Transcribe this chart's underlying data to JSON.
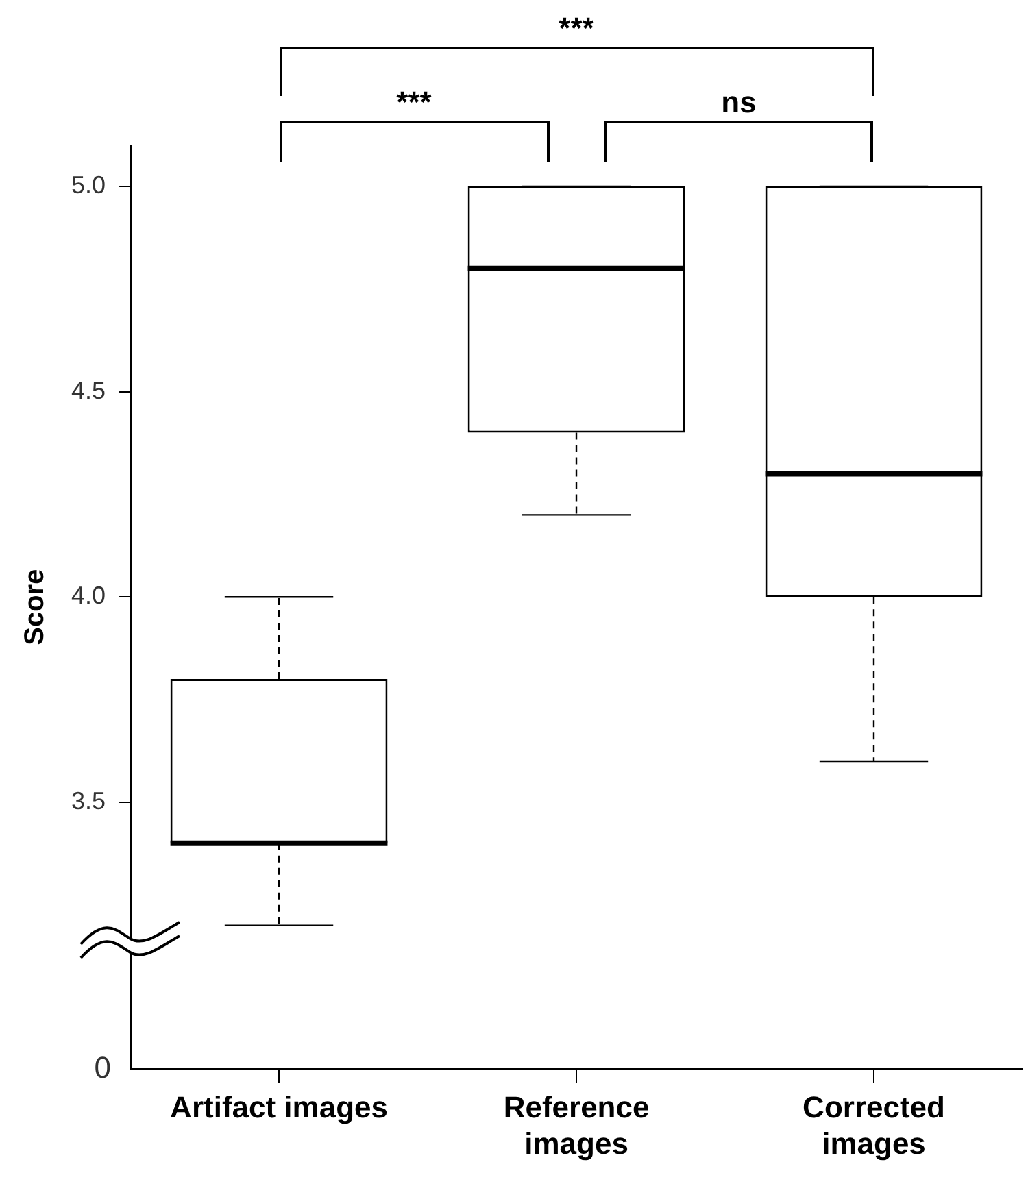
{
  "chart_data": {
    "type": "box",
    "ylabel": "Score",
    "categories": [
      "Artifact images",
      "Reference\nimages",
      "Corrected\nimages"
    ],
    "boxes": [
      {
        "low": 3.2,
        "q1": 3.4,
        "median": 3.4,
        "q3": 3.8,
        "high": 4.0
      },
      {
        "low": 4.2,
        "q1": 4.4,
        "median": 4.8,
        "q3": 5.0,
        "high": 5.0
      },
      {
        "low": 3.6,
        "q1": 4.0,
        "median": 4.3,
        "q3": 5.0,
        "high": 5.0
      }
    ],
    "color": "#000000",
    "ylim": [
      2.85,
      5.1
    ],
    "yticks": [
      {
        "value": 3.5,
        "label": "3.5"
      },
      {
        "value": 4,
        "label": "4.0"
      },
      {
        "value": 4.5,
        "label": "4.5"
      },
      {
        "value": 5,
        "label": "5.0"
      }
    ],
    "annotations": [
      "***",
      "ns",
      "***",
      "0"
    ],
    "grid": false,
    "legend": false
  }
}
